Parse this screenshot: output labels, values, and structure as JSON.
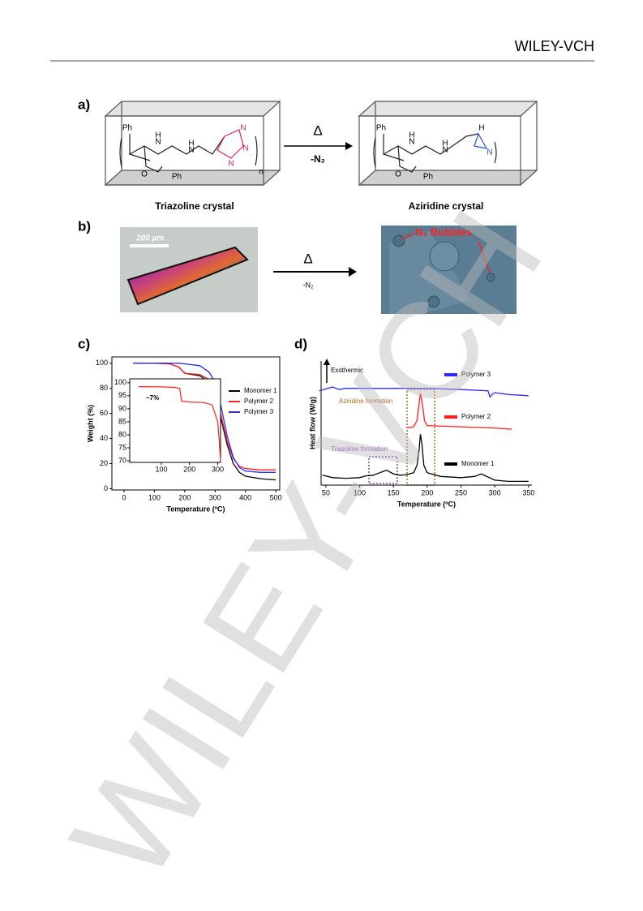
{
  "header": {
    "brand": "WILEY-VCH"
  },
  "watermark": "WILEY-VCH",
  "figure": {
    "a": {
      "label": "a)",
      "left_caption": "Triazoline crystal",
      "right_caption": "Aziridine crystal",
      "arrow_top": "Δ",
      "arrow_bottom": "-N₂",
      "left_atoms": [
        "Ph",
        "O",
        "N",
        "H",
        "N",
        "H",
        "N",
        "N",
        "N",
        "Ph",
        "n"
      ],
      "right_atoms": [
        "Ph",
        "O",
        "N",
        "H",
        "N",
        "H",
        "H",
        "N",
        "Ph"
      ]
    },
    "b": {
      "label": "b)",
      "scale_bar": "200 µm",
      "annotation": "N₂ Bubbles",
      "arrow_top": "Δ",
      "arrow_bottom": "-N₂"
    },
    "c_label": "c)",
    "d_label": "d)"
  },
  "chart_data": [
    {
      "type": "line",
      "xlabel": "Temperature (ºC)",
      "ylabel": "Weight (%)",
      "xlim": [
        -40,
        513
      ],
      "xticks": [
        0,
        100,
        200,
        300,
        400,
        500
      ],
      "ylim": [
        -1,
        105
      ],
      "yticks": [
        0,
        20,
        40,
        60,
        80,
        100
      ],
      "x": [
        30,
        100,
        150,
        180,
        200,
        250,
        280,
        300,
        320,
        340,
        360,
        380,
        400,
        450,
        500
      ],
      "series": [
        {
          "name": "Monomer 1",
          "color": "#000000",
          "values": [
            100,
            100,
            99.5,
            97,
            92,
            90,
            85,
            75,
            55,
            35,
            20,
            13,
            10,
            8,
            7
          ]
        },
        {
          "name": "Polymer 2",
          "color": "#ff2020",
          "values": [
            100,
            100,
            99.5,
            97,
            92,
            91,
            87,
            78,
            58,
            38,
            24,
            18,
            16,
            15,
            15
          ]
        },
        {
          "name": "Polymer 3",
          "color": "#2b2bff",
          "values": [
            100,
            100,
            100,
            100,
            99.5,
            98,
            93,
            85,
            65,
            42,
            25,
            17,
            14,
            13,
            13
          ]
        }
      ],
      "inset": {
        "xlim": [
          -12,
          310
        ],
        "xticks": [
          100,
          200,
          300
        ],
        "ylim": [
          69.4,
          101.5
        ],
        "yticks": [
          70,
          75,
          80,
          85,
          90,
          95,
          100
        ],
        "annotation": "~7%",
        "color": "#ff2020",
        "x": [
          20,
          100,
          150,
          165,
          172,
          200,
          250,
          280,
          300,
          305,
          310
        ],
        "values": [
          98.5,
          98.4,
          98.2,
          97.8,
          93,
          92.6,
          92.4,
          91.5,
          85,
          78,
          70
        ]
      }
    },
    {
      "type": "line",
      "xlabel": "Temperature (ºC)",
      "ylabel": "Heat flow (W/g)",
      "xlim": [
        43,
        355
      ],
      "xticks": [
        50,
        100,
        150,
        200,
        250,
        300,
        350
      ],
      "ylim": [
        0,
        10
      ],
      "annotations": [
        "Exothermic",
        "Aziridine formation",
        "Triazoline formation"
      ],
      "series": [
        {
          "name": "Polymer 3",
          "color": "#2b2bff",
          "x": [
            40,
            60,
            70,
            80,
            100,
            150,
            200,
            250,
            290,
            293,
            296,
            300,
            320,
            350
          ],
          "values": [
            7.6,
            7.9,
            7.7,
            7.8,
            7.8,
            7.8,
            7.8,
            7.7,
            7.6,
            7.1,
            7.3,
            7.45,
            7.3,
            7.2
          ]
        },
        {
          "name": "Polymer 2",
          "color": "#ff2020",
          "x": [
            170,
            180,
            185,
            188,
            190,
            193,
            196,
            200,
            250,
            300,
            325
          ],
          "values": [
            4.6,
            4.7,
            5.2,
            6.5,
            7.4,
            6.5,
            5.2,
            4.8,
            4.7,
            4.6,
            4.5
          ]
        },
        {
          "name": "Monomer 1",
          "color": "#000000",
          "x": [
            45,
            60,
            80,
            100,
            110,
            120,
            130,
            140,
            150,
            160,
            170,
            180,
            185,
            188,
            190,
            192,
            195,
            200,
            220,
            250,
            270,
            280,
            300,
            320,
            350
          ],
          "values": [
            0.8,
            0.6,
            0.55,
            0.6,
            0.75,
            0.8,
            1.0,
            1.2,
            0.9,
            0.8,
            0.85,
            1.0,
            1.6,
            2.8,
            4.1,
            3.4,
            1.6,
            1.0,
            0.7,
            0.6,
            0.7,
            0.9,
            0.4,
            0.3,
            0.3
          ]
        }
      ]
    }
  ]
}
